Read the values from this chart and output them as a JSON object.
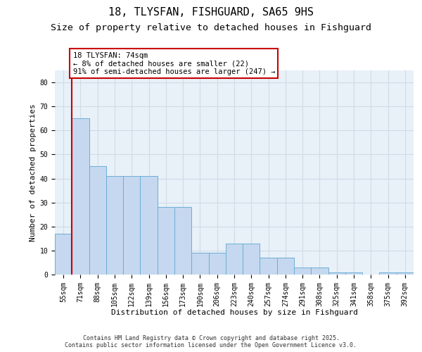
{
  "title_line1": "18, TLYSFAN, FISHGUARD, SA65 9HS",
  "title_line2": "Size of property relative to detached houses in Fishguard",
  "xlabel": "Distribution of detached houses by size in Fishguard",
  "ylabel": "Number of detached properties",
  "categories": [
    "55sqm",
    "71sqm",
    "88sqm",
    "105sqm",
    "122sqm",
    "139sqm",
    "156sqm",
    "173sqm",
    "190sqm",
    "206sqm",
    "223sqm",
    "240sqm",
    "257sqm",
    "274sqm",
    "291sqm",
    "308sqm",
    "325sqm",
    "341sqm",
    "358sqm",
    "375sqm",
    "392sqm"
  ],
  "values": [
    17,
    65,
    45,
    41,
    41,
    41,
    28,
    28,
    9,
    9,
    13,
    13,
    7,
    7,
    3,
    3,
    1,
    1,
    0,
    1,
    1
  ],
  "bar_color": "#c5d8ef",
  "bar_edge_color": "#6baed6",
  "grid_color": "#d0dce8",
  "background_color": "#e8f0f8",
  "highlight_line_color": "#cc0000",
  "annotation_text": "18 TLYSFAN: 74sqm\n← 8% of detached houses are smaller (22)\n91% of semi-detached houses are larger (247) →",
  "annotation_box_facecolor": "#ffffff",
  "annotation_box_edgecolor": "#cc0000",
  "ylim": [
    0,
    85
  ],
  "yticks": [
    0,
    10,
    20,
    30,
    40,
    50,
    60,
    70,
    80
  ],
  "footer_text": "Contains HM Land Registry data © Crown copyright and database right 2025.\nContains public sector information licensed under the Open Government Licence v3.0.",
  "title_fontsize": 11,
  "subtitle_fontsize": 9.5,
  "axis_label_fontsize": 8,
  "tick_fontsize": 7,
  "footer_fontsize": 6,
  "ann_fontsize": 7.5
}
